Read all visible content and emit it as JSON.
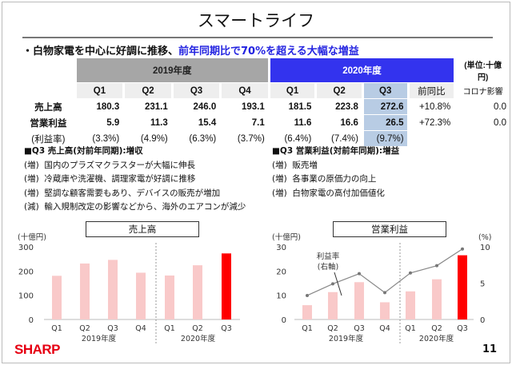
{
  "title": "スマートライフ",
  "headline": {
    "normal": "・白物家電を中心に好調に推移、",
    "highlight": "前年同期比で70%を超える大幅な増益"
  },
  "table": {
    "unit": "(単位:十億円)",
    "year_2019": "2019年度",
    "year_2020": "2020年度",
    "quarters": [
      "Q1",
      "Q2",
      "Q3",
      "Q4",
      "Q1",
      "Q2",
      "Q3"
    ],
    "yoy_header": "前同比",
    "covid_header": "コロナ影響",
    "rows": [
      {
        "label": "売上高",
        "values": [
          "180.3",
          "231.1",
          "246.0",
          "193.1",
          "181.5",
          "223.8",
          "272.6"
        ],
        "yoy": "+10.8%",
        "covid": "0.0"
      },
      {
        "label": "営業利益",
        "values": [
          "5.9",
          "11.3",
          "15.4",
          "7.1",
          "11.6",
          "16.6",
          "26.5"
        ],
        "yoy": "+72.3%",
        "covid": "0.0"
      },
      {
        "label": "(利益率)",
        "values": [
          "(3.3%)",
          "(4.9%)",
          "(6.3%)",
          "(3.7%)",
          "(6.4%)",
          "(7.4%)",
          "(9.7%)"
        ],
        "yoy": "",
        "covid": ""
      }
    ]
  },
  "notes_left": {
    "heading": "■Q3 売上高(対前年同期):増収",
    "items": [
      {
        "tag": "(増)",
        "text": "国内のプラズマクラスターが大幅に伸長"
      },
      {
        "tag": "(増)",
        "text": "冷蔵庫や洗濯機、調理家電が好調に推移"
      },
      {
        "tag": "(増)",
        "text": "堅調な顧客需要もあり、デバイスの販売が増加"
      },
      {
        "tag": "(減)",
        "text": "輸入規制改定の影響などから、海外のエアコンが減少"
      }
    ]
  },
  "notes_right": {
    "heading": "■Q3 営業利益(対前年同期):増益",
    "items": [
      {
        "tag": "(増)",
        "text": "販売増"
      },
      {
        "tag": "(増)",
        "text": "各事業の原価力の向上"
      },
      {
        "tag": "(増)",
        "text": "白物家電の高付加価値化"
      }
    ]
  },
  "chart_data": [
    {
      "type": "bar",
      "title": "売上高",
      "ylabel": "(十億円)",
      "ylim": [
        0,
        300
      ],
      "yticks": [
        0,
        100,
        200,
        300
      ],
      "categories": [
        "Q1",
        "Q2",
        "Q3",
        "Q4",
        "Q1",
        "Q2",
        "Q3"
      ],
      "groups": [
        "2019年度",
        "2020年度"
      ],
      "values": [
        180.3,
        231.1,
        246.0,
        193.1,
        181.5,
        223.8,
        272.6
      ],
      "colors": {
        "normal": "#f9c9c9",
        "highlight": "#ff0000"
      }
    },
    {
      "type": "bar+line",
      "title": "営業利益",
      "ylabel": "(十億円)",
      "y2label": "(%)",
      "ylim": [
        0,
        30
      ],
      "y2lim": [
        0,
        10
      ],
      "yticks": [
        0,
        10,
        20,
        30
      ],
      "y2ticks": [
        0,
        5,
        10
      ],
      "line_label": [
        "利益率",
        "(右軸)"
      ],
      "categories": [
        "Q1",
        "Q2",
        "Q3",
        "Q4",
        "Q1",
        "Q2",
        "Q3"
      ],
      "groups": [
        "2019年度",
        "2020年度"
      ],
      "values": [
        5.9,
        11.3,
        15.4,
        7.1,
        11.6,
        16.6,
        26.5
      ],
      "margin": [
        3.3,
        4.9,
        6.3,
        3.7,
        6.4,
        7.4,
        9.7
      ],
      "colors": {
        "normal": "#f9c9c9",
        "highlight": "#ff0000",
        "line": "#888888"
      }
    }
  ],
  "footer": {
    "logo": "SHARP",
    "page": "11"
  }
}
